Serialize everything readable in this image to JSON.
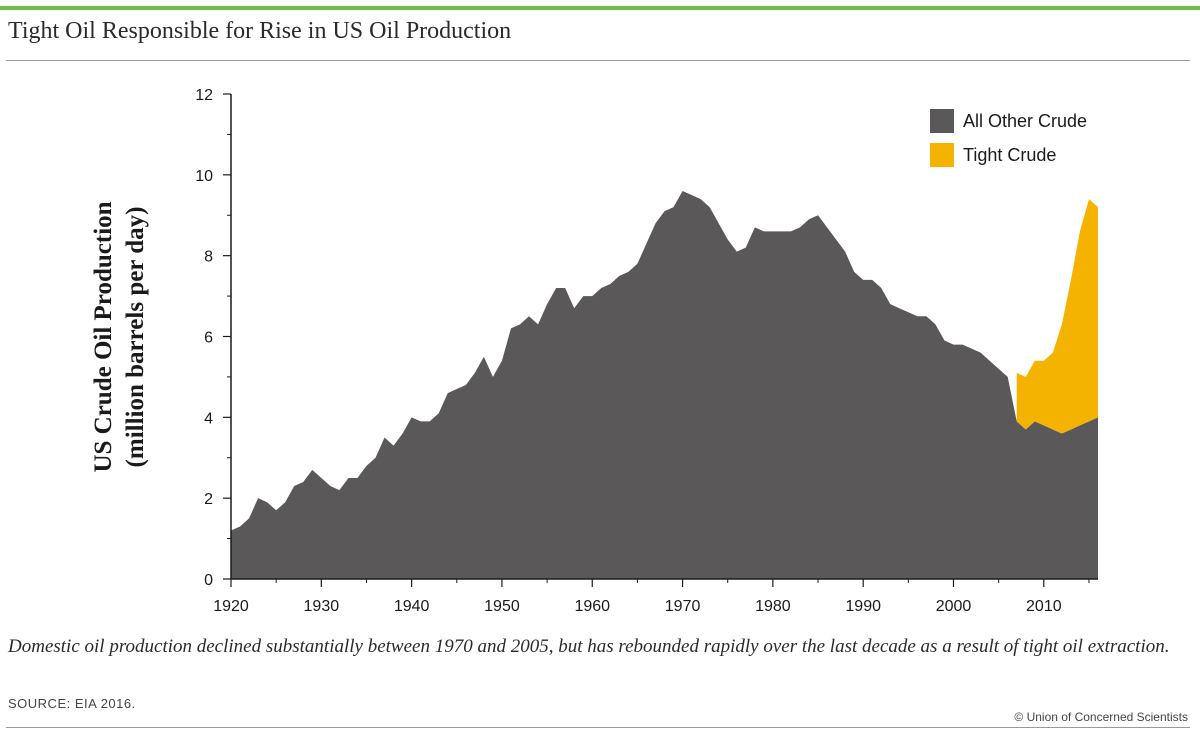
{
  "header": {
    "title": "Tight Oil Responsible for Rise in US Oil Production"
  },
  "footer": {
    "caption": "Domestic oil production declined substantially between 1970 and 2005, but has rebounded rapidly over the last decade as a result of tight oil extraction.",
    "source": "SOURCE: EIA 2016.",
    "credit": "© Union of Concerned Scientists"
  },
  "colors": {
    "accent": "#6cbf45",
    "other_crude": "#5a5858",
    "tight_crude": "#f4b300"
  },
  "chart_data": {
    "type": "area",
    "stacked": true,
    "title": "Tight Oil Responsible for Rise in US Oil Production",
    "ylabel": "US Crude Oil Production",
    "ylabel_sub": "(million barrels per day)",
    "xlabel": "",
    "xlim": [
      1920,
      2016
    ],
    "ylim": [
      0,
      12
    ],
    "x_ticks": [
      1920,
      1930,
      1940,
      1950,
      1960,
      1970,
      1980,
      1990,
      2000,
      2010
    ],
    "y_ticks": [
      0,
      2,
      4,
      6,
      8,
      10,
      12
    ],
    "legend_position": "top-right",
    "grid": false,
    "series": [
      {
        "name": "All Other Crude",
        "color": "#5a5858",
        "x": [
          1920,
          1921,
          1922,
          1923,
          1924,
          1925,
          1926,
          1927,
          1928,
          1929,
          1930,
          1931,
          1932,
          1933,
          1934,
          1935,
          1936,
          1937,
          1938,
          1939,
          1940,
          1941,
          1942,
          1943,
          1944,
          1945,
          1946,
          1947,
          1948,
          1949,
          1950,
          1951,
          1952,
          1953,
          1954,
          1955,
          1956,
          1957,
          1958,
          1959,
          1960,
          1961,
          1962,
          1963,
          1964,
          1965,
          1966,
          1967,
          1968,
          1969,
          1970,
          1971,
          1972,
          1973,
          1974,
          1975,
          1976,
          1977,
          1978,
          1979,
          1980,
          1981,
          1982,
          1983,
          1984,
          1985,
          1986,
          1987,
          1988,
          1989,
          1990,
          1991,
          1992,
          1993,
          1994,
          1995,
          1996,
          1997,
          1998,
          1999,
          2000,
          2001,
          2002,
          2003,
          2004,
          2005,
          2006,
          2007,
          2008,
          2009,
          2010,
          2011,
          2012,
          2013,
          2014,
          2015,
          2016
        ],
        "values": [
          1.2,
          1.3,
          1.5,
          2.0,
          1.9,
          1.7,
          1.9,
          2.3,
          2.4,
          2.7,
          2.5,
          2.3,
          2.2,
          2.5,
          2.5,
          2.8,
          3.0,
          3.5,
          3.3,
          3.6,
          4.0,
          3.9,
          3.9,
          4.1,
          4.6,
          4.7,
          4.8,
          5.1,
          5.5,
          5.0,
          5.4,
          6.2,
          6.3,
          6.5,
          6.3,
          6.8,
          7.2,
          7.2,
          6.7,
          7.0,
          7.0,
          7.2,
          7.3,
          7.5,
          7.6,
          7.8,
          8.3,
          8.8,
          9.1,
          9.2,
          9.6,
          9.5,
          9.4,
          9.2,
          8.8,
          8.4,
          8.1,
          8.2,
          8.7,
          8.6,
          8.6,
          8.6,
          8.6,
          8.7,
          8.9,
          9.0,
          8.7,
          8.4,
          8.1,
          7.6,
          7.4,
          7.4,
          7.2,
          6.8,
          6.7,
          6.6,
          6.5,
          6.5,
          6.3,
          5.9,
          5.8,
          5.8,
          5.7,
          5.6,
          5.4,
          5.2,
          5.0,
          3.9,
          3.7,
          3.9,
          3.8,
          3.7,
          3.6,
          3.7,
          3.8,
          3.9,
          4.0
        ]
      },
      {
        "name": "Tight Crude",
        "color": "#f4b300",
        "x": [
          2007,
          2008,
          2009,
          2010,
          2011,
          2012,
          2013,
          2014,
          2015,
          2016
        ],
        "values": [
          1.2,
          1.3,
          1.5,
          1.6,
          1.9,
          2.7,
          3.7,
          4.8,
          5.5,
          5.2
        ]
      }
    ]
  }
}
